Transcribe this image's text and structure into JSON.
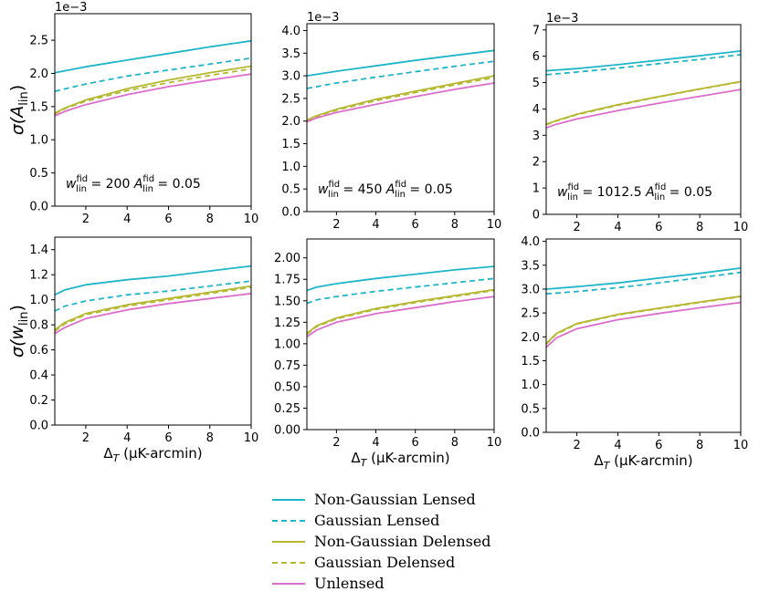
{
  "colors": {
    "non_gaussian_lensed": "#1fb5c8",
    "gaussian_lensed": "#1fb5c8",
    "non_gaussian_delensed": "#b5b830",
    "gaussian_delensed": "#b5b830",
    "unlensed": "#dc6ecb"
  },
  "legend": {
    "items": [
      {
        "label": "Non-Gaussian Lensed",
        "color": "#1fb5c8",
        "dash": "solid"
      },
      {
        "label": "Gaussian Lensed",
        "color": "#1fb5c8",
        "dash": "dashed"
      },
      {
        "label": "Non-Gaussian Delensed",
        "color": "#b5b830",
        "dash": "solid"
      },
      {
        "label": "Gaussian Delensed",
        "color": "#b5b830",
        "dash": "dashed"
      },
      {
        "label": "Unlensed",
        "color": "#dc6ecb",
        "dash": "solid"
      }
    ]
  },
  "chart_data": [
    {
      "type": "line",
      "panel": "top-left",
      "ylabel_main": "σ(A",
      "ylabel_sub": "lin",
      "ylabel_close": ")",
      "xlabel": "",
      "offset_text": "1e−3",
      "annotation": {
        "w_sup": "fid",
        "w_sub": "lin",
        "w_value": "= 200",
        "a_sup": "fid",
        "a_sub": "lin",
        "a_value": "= 0.05"
      },
      "xlim": [
        0.5,
        10
      ],
      "ylim": [
        0,
        2.9
      ],
      "xticks": [
        2,
        4,
        6,
        8,
        10
      ],
      "xtick_labels": [
        "2",
        "4",
        "6",
        "8",
        "10"
      ],
      "yticks": [
        0,
        0.5,
        1.0,
        1.5,
        2.0,
        2.5
      ],
      "ytick_labels": [
        "0.0",
        "0.5",
        "1.0",
        "1.5",
        "2.0",
        "2.5"
      ],
      "series": [
        {
          "name": "Non-Gaussian Lensed",
          "x": [
            0.5,
            2,
            4,
            6,
            8,
            10
          ],
          "values": [
            2.01,
            2.1,
            2.2,
            2.3,
            2.4,
            2.49
          ]
        },
        {
          "name": "Gaussian Lensed",
          "x": [
            0.5,
            2,
            4,
            6,
            8,
            10
          ],
          "values": [
            1.73,
            1.84,
            1.96,
            2.05,
            2.14,
            2.23
          ]
        },
        {
          "name": "Non-Gaussian Delensed",
          "x": [
            0.5,
            1,
            2,
            4,
            6,
            8,
            10
          ],
          "values": [
            1.4,
            1.48,
            1.6,
            1.77,
            1.9,
            2.01,
            2.11
          ]
        },
        {
          "name": "Gaussian Delensed",
          "x": [
            0.5,
            1,
            2,
            4,
            6,
            8,
            10
          ],
          "values": [
            1.39,
            1.47,
            1.58,
            1.74,
            1.86,
            1.97,
            2.07
          ]
        },
        {
          "name": "Unlensed",
          "x": [
            0.5,
            1,
            2,
            4,
            6,
            8,
            10
          ],
          "values": [
            1.36,
            1.43,
            1.53,
            1.68,
            1.8,
            1.9,
            1.99
          ]
        }
      ]
    },
    {
      "type": "line",
      "panel": "top-middle",
      "ylabel_main": "",
      "ylabel_sub": "",
      "ylabel_close": "",
      "xlabel": "",
      "offset_text": "1e−3",
      "annotation": {
        "w_sup": "fid",
        "w_sub": "lin",
        "w_value": "= 450",
        "a_sup": "fid",
        "a_sub": "lin",
        "a_value": "= 0.05"
      },
      "xlim": [
        0.5,
        10
      ],
      "ylim": [
        0,
        4.15
      ],
      "xticks": [
        2,
        4,
        6,
        8,
        10
      ],
      "xtick_labels": [
        "2",
        "4",
        "6",
        "8",
        "10"
      ],
      "yticks": [
        0,
        0.5,
        1.0,
        1.5,
        2.0,
        2.5,
        3.0,
        3.5,
        4.0
      ],
      "ytick_labels": [
        "0.0",
        "0.5",
        "1.0",
        "1.5",
        "2.0",
        "2.5",
        "3.0",
        "3.5",
        "4.0"
      ],
      "series": [
        {
          "name": "Non-Gaussian Lensed",
          "x": [
            0.5,
            2,
            4,
            6,
            8,
            10
          ],
          "values": [
            3.0,
            3.1,
            3.22,
            3.34,
            3.45,
            3.56
          ]
        },
        {
          "name": "Gaussian Lensed",
          "x": [
            0.5,
            2,
            4,
            6,
            8,
            10
          ],
          "values": [
            2.72,
            2.84,
            2.97,
            3.09,
            3.21,
            3.32
          ]
        },
        {
          "name": "Non-Gaussian Delensed",
          "x": [
            0.5,
            1,
            2,
            4,
            6,
            8,
            10
          ],
          "values": [
            2.02,
            2.12,
            2.26,
            2.48,
            2.66,
            2.83,
            3.0
          ]
        },
        {
          "name": "Gaussian Delensed",
          "x": [
            0.5,
            1,
            2,
            4,
            6,
            8,
            10
          ],
          "values": [
            2.0,
            2.1,
            2.24,
            2.45,
            2.63,
            2.8,
            2.96
          ]
        },
        {
          "name": "Unlensed",
          "x": [
            0.5,
            1,
            2,
            4,
            6,
            8,
            10
          ],
          "values": [
            1.98,
            2.07,
            2.19,
            2.37,
            2.54,
            2.7,
            2.84
          ]
        }
      ]
    },
    {
      "type": "line",
      "panel": "top-right",
      "ylabel_main": "",
      "ylabel_sub": "",
      "ylabel_close": "",
      "xlabel": "",
      "offset_text": "1e−3",
      "annotation": {
        "w_sup": "fid",
        "w_sub": "lin",
        "w_value": "= 1012.5",
        "a_sup": "fid",
        "a_sub": "lin",
        "a_value": "= 0.05"
      },
      "xlim": [
        0.5,
        10
      ],
      "ylim": [
        0,
        7.2
      ],
      "xticks": [
        2,
        4,
        6,
        8,
        10
      ],
      "xtick_labels": [
        "2",
        "4",
        "6",
        "8",
        "10"
      ],
      "yticks": [
        0,
        1,
        2,
        3,
        4,
        5,
        6,
        7
      ],
      "ytick_labels": [
        "0",
        "1",
        "2",
        "3",
        "4",
        "5",
        "6",
        "7"
      ],
      "series": [
        {
          "name": "Non-Gaussian Lensed",
          "x": [
            0.5,
            2,
            4,
            6,
            8,
            10
          ],
          "values": [
            5.45,
            5.53,
            5.68,
            5.85,
            6.02,
            6.2
          ]
        },
        {
          "name": "Gaussian Lensed",
          "x": [
            0.5,
            2,
            4,
            6,
            8,
            10
          ],
          "values": [
            5.3,
            5.4,
            5.55,
            5.72,
            5.88,
            6.06
          ]
        },
        {
          "name": "Non-Gaussian Delensed",
          "x": [
            0.5,
            1,
            2,
            4,
            6,
            8,
            10
          ],
          "values": [
            3.42,
            3.56,
            3.8,
            4.16,
            4.47,
            4.76,
            5.04
          ]
        },
        {
          "name": "Gaussian Delensed",
          "x": [
            0.5,
            1,
            2,
            4,
            6,
            8,
            10
          ],
          "values": [
            3.4,
            3.54,
            3.78,
            4.14,
            4.46,
            4.75,
            5.03
          ]
        },
        {
          "name": "Unlensed",
          "x": [
            0.5,
            1,
            2,
            4,
            6,
            8,
            10
          ],
          "values": [
            3.28,
            3.42,
            3.62,
            3.94,
            4.22,
            4.48,
            4.74
          ]
        }
      ]
    },
    {
      "type": "line",
      "panel": "bottom-left",
      "ylabel_main": "σ(w",
      "ylabel_sub": "lin",
      "ylabel_close": ")",
      "xlabel": "Δ",
      "xlabel_sub": "T",
      "xlabel_rest": " (μK-arcmin)",
      "offset_text": "",
      "annotation": null,
      "xlim": [
        0.5,
        10
      ],
      "ylim": [
        0,
        1.5
      ],
      "xticks": [
        2,
        4,
        6,
        8,
        10
      ],
      "xtick_labels": [
        "2",
        "4",
        "6",
        "8",
        "10"
      ],
      "yticks": [
        0,
        0.2,
        0.4,
        0.6,
        0.8,
        1.0,
        1.2,
        1.4
      ],
      "ytick_labels": [
        "0.0",
        "0.2",
        "0.4",
        "0.6",
        "0.8",
        "1.0",
        "1.2",
        "1.4"
      ],
      "series": [
        {
          "name": "Non-Gaussian Lensed",
          "x": [
            0.5,
            1,
            2,
            4,
            6,
            8,
            10
          ],
          "values": [
            1.04,
            1.08,
            1.12,
            1.16,
            1.19,
            1.23,
            1.27
          ]
        },
        {
          "name": "Gaussian Lensed",
          "x": [
            0.5,
            1,
            2,
            4,
            6,
            8,
            10
          ],
          "values": [
            0.91,
            0.95,
            0.99,
            1.04,
            1.07,
            1.11,
            1.15
          ]
        },
        {
          "name": "Non-Gaussian Delensed",
          "x": [
            0.5,
            1,
            2,
            4,
            6,
            8,
            10
          ],
          "values": [
            0.76,
            0.82,
            0.89,
            0.96,
            1.01,
            1.06,
            1.11
          ]
        },
        {
          "name": "Gaussian Delensed",
          "x": [
            0.5,
            1,
            2,
            4,
            6,
            8,
            10
          ],
          "values": [
            0.75,
            0.81,
            0.88,
            0.95,
            1.0,
            1.05,
            1.1
          ]
        },
        {
          "name": "Unlensed",
          "x": [
            0.5,
            1,
            2,
            4,
            6,
            8,
            10
          ],
          "values": [
            0.73,
            0.78,
            0.85,
            0.92,
            0.97,
            1.01,
            1.05
          ]
        }
      ]
    },
    {
      "type": "line",
      "panel": "bottom-middle",
      "ylabel_main": "",
      "ylabel_sub": "",
      "ylabel_close": "",
      "xlabel": "Δ",
      "xlabel_sub": "T",
      "xlabel_rest": " (μK-arcmin)",
      "offset_text": "",
      "annotation": null,
      "xlim": [
        0.5,
        10
      ],
      "ylim": [
        0,
        2.22
      ],
      "xticks": [
        2,
        4,
        6,
        8,
        10
      ],
      "xtick_labels": [
        "2",
        "4",
        "6",
        "8",
        "10"
      ],
      "yticks": [
        0,
        0.25,
        0.5,
        0.75,
        1.0,
        1.25,
        1.5,
        1.75,
        2.0
      ],
      "ytick_labels": [
        "0.00",
        "0.25",
        "0.50",
        "0.75",
        "1.00",
        "1.25",
        "1.50",
        "1.75",
        "2.00"
      ],
      "series": [
        {
          "name": "Non-Gaussian Lensed",
          "x": [
            0.5,
            1,
            2,
            4,
            6,
            8,
            10
          ],
          "values": [
            1.62,
            1.66,
            1.7,
            1.76,
            1.81,
            1.86,
            1.9
          ]
        },
        {
          "name": "Gaussian Lensed",
          "x": [
            0.5,
            1,
            2,
            4,
            6,
            8,
            10
          ],
          "values": [
            1.47,
            1.51,
            1.55,
            1.61,
            1.66,
            1.71,
            1.76
          ]
        },
        {
          "name": "Non-Gaussian Delensed",
          "x": [
            0.5,
            1,
            2,
            4,
            6,
            8,
            10
          ],
          "values": [
            1.12,
            1.21,
            1.3,
            1.41,
            1.49,
            1.56,
            1.63
          ]
        },
        {
          "name": "Gaussian Delensed",
          "x": [
            0.5,
            1,
            2,
            4,
            6,
            8,
            10
          ],
          "values": [
            1.11,
            1.2,
            1.29,
            1.4,
            1.48,
            1.55,
            1.62
          ]
        },
        {
          "name": "Unlensed",
          "x": [
            0.5,
            1,
            2,
            4,
            6,
            8,
            10
          ],
          "values": [
            1.08,
            1.16,
            1.25,
            1.35,
            1.42,
            1.49,
            1.55
          ]
        }
      ]
    },
    {
      "type": "line",
      "panel": "bottom-right",
      "ylabel_main": "",
      "ylabel_sub": "",
      "ylabel_close": "",
      "xlabel": "Δ",
      "xlabel_sub": "T",
      "xlabel_rest": " (μK-arcmin)",
      "offset_text": "",
      "annotation": null,
      "xlim": [
        0.5,
        10
      ],
      "ylim": [
        0,
        4.05
      ],
      "xticks": [
        2,
        4,
        6,
        8,
        10
      ],
      "xtick_labels": [
        "2",
        "4",
        "6",
        "8",
        "10"
      ],
      "yticks": [
        0,
        0.5,
        1.0,
        1.5,
        2.0,
        2.5,
        3.0,
        3.5,
        4.0
      ],
      "ytick_labels": [
        "0.0",
        "0.5",
        "1.0",
        "1.5",
        "2.0",
        "2.5",
        "3.0",
        "3.5",
        "4.0"
      ],
      "series": [
        {
          "name": "Non-Gaussian Lensed",
          "x": [
            0.5,
            2,
            4,
            6,
            8,
            10
          ],
          "values": [
            3.0,
            3.05,
            3.13,
            3.23,
            3.33,
            3.44
          ]
        },
        {
          "name": "Gaussian Lensed",
          "x": [
            0.5,
            2,
            4,
            6,
            8,
            10
          ],
          "values": [
            2.9,
            2.95,
            3.03,
            3.13,
            3.24,
            3.35
          ]
        },
        {
          "name": "Non-Gaussian Delensed",
          "x": [
            0.5,
            1,
            2,
            4,
            6,
            8,
            10
          ],
          "values": [
            1.86,
            2.07,
            2.28,
            2.47,
            2.6,
            2.73,
            2.85
          ]
        },
        {
          "name": "Gaussian Delensed",
          "x": [
            0.5,
            1,
            2,
            4,
            6,
            8,
            10
          ],
          "values": [
            1.85,
            2.06,
            2.27,
            2.46,
            2.59,
            2.72,
            2.84
          ]
        },
        {
          "name": "Unlensed",
          "x": [
            0.5,
            1,
            2,
            4,
            6,
            8,
            10
          ],
          "values": [
            1.78,
            1.98,
            2.17,
            2.36,
            2.49,
            2.61,
            2.72
          ]
        }
      ]
    }
  ]
}
